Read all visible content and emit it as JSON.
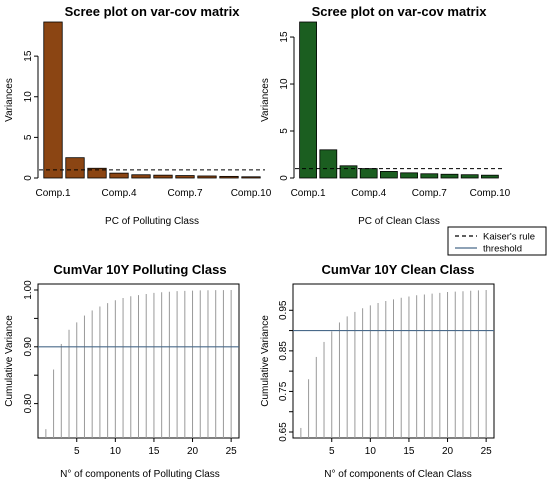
{
  "chart_data": [
    {
      "type": "bar",
      "title": "Scree plot on var-cov matrix",
      "xlabel": "PC of Polluting Class",
      "ylabel": "Variances",
      "categories": [
        "Comp.1",
        "Comp.2",
        "Comp.3",
        "Comp.4",
        "Comp.5",
        "Comp.6",
        "Comp.7",
        "Comp.8",
        "Comp.9",
        "Comp.10"
      ],
      "category_labels": [
        "Comp.1",
        "",
        "",
        "Comp.4",
        "",
        "",
        "Comp.7",
        "",
        "",
        "Comp.10"
      ],
      "values": [
        19.2,
        2.5,
        1.2,
        0.6,
        0.4,
        0.35,
        0.3,
        0.25,
        0.2,
        0.15
      ],
      "bar_color": "#8B4513",
      "threshold": 1,
      "threshold_style": "dashed",
      "ylim": [
        0,
        19.2
      ],
      "yticks": [
        0,
        5,
        10,
        15
      ]
    },
    {
      "type": "bar",
      "title": "Scree plot on var-cov matrix",
      "xlabel": "PC of Clean Class",
      "ylabel": "Variances",
      "categories": [
        "Comp.1",
        "Comp.2",
        "Comp.3",
        "Comp.4",
        "Comp.5",
        "Comp.6",
        "Comp.7",
        "Comp.8",
        "Comp.9",
        "Comp.10"
      ],
      "category_labels": [
        "Comp.1",
        "",
        "",
        "Comp.4",
        "",
        "",
        "Comp.7",
        "",
        "",
        "Comp.10"
      ],
      "values": [
        16.6,
        3.0,
        1.3,
        1.0,
        0.7,
        0.55,
        0.45,
        0.4,
        0.35,
        0.3
      ],
      "bar_color": "#1B5E20",
      "threshold": 1,
      "threshold_style": "dashed",
      "ylim": [
        0,
        16.6
      ],
      "yticks": [
        0,
        5,
        10,
        15
      ]
    },
    {
      "type": "line",
      "style": "histogram-spikes",
      "title": "CumVar 10Y Polluting Class",
      "xlabel": "N° of components of Polluting Class",
      "ylabel": "Cumulative Variance",
      "x": [
        1,
        2,
        3,
        4,
        5,
        6,
        7,
        8,
        9,
        10,
        11,
        12,
        13,
        14,
        15,
        16,
        17,
        18,
        19,
        20,
        21,
        22,
        23,
        24,
        25
      ],
      "values": [
        0.755,
        0.86,
        0.905,
        0.93,
        0.943,
        0.955,
        0.964,
        0.971,
        0.977,
        0.982,
        0.986,
        0.989,
        0.991,
        0.993,
        0.995,
        0.996,
        0.997,
        0.998,
        0.9985,
        0.999,
        0.9993,
        0.9995,
        0.9997,
        0.9998,
        1.0
      ],
      "spike_color": "#999999",
      "threshold": 0.9,
      "threshold_color": "#4A6A8A",
      "xlim": [
        0.5,
        25.5
      ],
      "ylim": [
        0.75,
        1.0
      ],
      "xticks": [
        5,
        10,
        15,
        20,
        25
      ],
      "yticks": [
        0.8,
        0.85,
        0.9,
        0.95,
        1.0
      ],
      "ytick_labels": [
        "0.80",
        "",
        "0.90",
        "",
        "1.00"
      ]
    },
    {
      "type": "line",
      "style": "histogram-spikes",
      "title": "CumVar 10Y Clean Class",
      "xlabel": "N° of components of Clean Class",
      "ylabel": "Cumulative Variance",
      "x": [
        1,
        2,
        3,
        4,
        5,
        6,
        7,
        8,
        9,
        10,
        11,
        12,
        13,
        14,
        15,
        16,
        17,
        18,
        19,
        20,
        21,
        22,
        23,
        24,
        25
      ],
      "values": [
        0.66,
        0.78,
        0.835,
        0.872,
        0.898,
        0.92,
        0.935,
        0.946,
        0.955,
        0.962,
        0.968,
        0.973,
        0.977,
        0.981,
        0.984,
        0.987,
        0.989,
        0.991,
        0.993,
        0.995,
        0.996,
        0.997,
        0.998,
        0.999,
        1.0
      ],
      "spike_color": "#999999",
      "threshold": 0.9,
      "threshold_color": "#4A6A8A",
      "xlim": [
        0.5,
        25.5
      ],
      "ylim": [
        0.65,
        1.0
      ],
      "xticks": [
        5,
        10,
        15,
        20,
        25
      ],
      "yticks": [
        0.65,
        0.7,
        0.75,
        0.8,
        0.85,
        0.9,
        0.95
      ],
      "ytick_labels": [
        "0.65",
        "",
        "0.75",
        "",
        "0.85",
        "",
        "0.95"
      ]
    }
  ],
  "legend": {
    "placement": "between-rows-right",
    "items": [
      {
        "label": "Kaiser's rule",
        "style": "dashed",
        "color": "#000000"
      },
      {
        "label": "threshold",
        "style": "solid",
        "color": "#4A6A8A"
      }
    ]
  }
}
